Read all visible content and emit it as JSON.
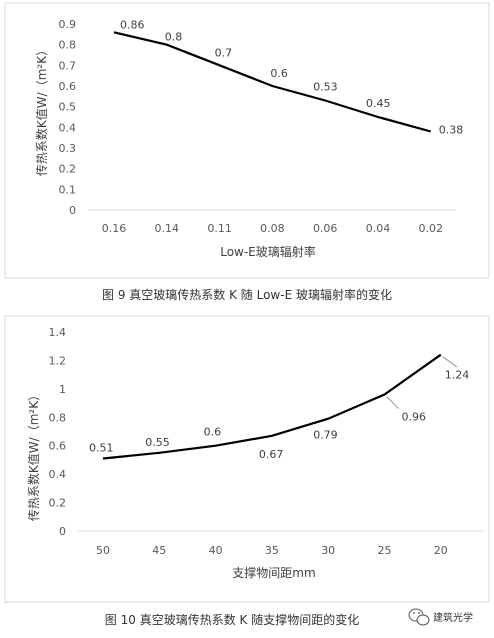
{
  "chart_data": [
    {
      "type": "line",
      "categories": [
        "0.16",
        "0.14",
        "0.11",
        "0.08",
        "0.06",
        "0.04",
        "0.02"
      ],
      "values": [
        0.86,
        0.8,
        0.7,
        0.6,
        0.53,
        0.45,
        0.38
      ],
      "data_labels": [
        "0.86",
        "0.8",
        "0.7",
        "0.6",
        "0.53",
        "0.45",
        "0.38"
      ],
      "xlabel": "Low-E玻璃辐射率",
      "ylabel": "传热系数K值W/（m²K）",
      "ylim": [
        0,
        0.9
      ],
      "yticks": [
        "0",
        "0.1",
        "0.2",
        "0.3",
        "0.4",
        "0.5",
        "0.6",
        "0.7",
        "0.8",
        "0.9"
      ],
      "grid": false,
      "caption": "图 9 真空玻璃传热系数 K 随 Low-E 玻璃辐射率的变化"
    },
    {
      "type": "line",
      "categories": [
        "50",
        "45",
        "40",
        "35",
        "30",
        "25",
        "20"
      ],
      "values": [
        0.51,
        0.55,
        0.6,
        0.67,
        0.79,
        0.96,
        1.24
      ],
      "data_labels": [
        "0.51",
        "0.55",
        "0.6",
        "0.67",
        "0.79",
        "0.96",
        "1.24"
      ],
      "xlabel": "支撑物间距mm",
      "ylabel": "传热系数K值W/（m²K）",
      "ylim": [
        0,
        1.4
      ],
      "yticks": [
        "0",
        "0.2",
        "0.4",
        "0.6",
        "0.8",
        "1",
        "1.2",
        "1.4"
      ],
      "grid": false,
      "caption": "图 10 真空玻璃传热系数 K 随支撑物间距的变化"
    }
  ],
  "watermark": {
    "text": "建筑光学",
    "icon": "wechat-icon"
  },
  "colors": {
    "line": "#000000",
    "frame": "#d9d9d9",
    "axis": "#d9d9d9"
  }
}
